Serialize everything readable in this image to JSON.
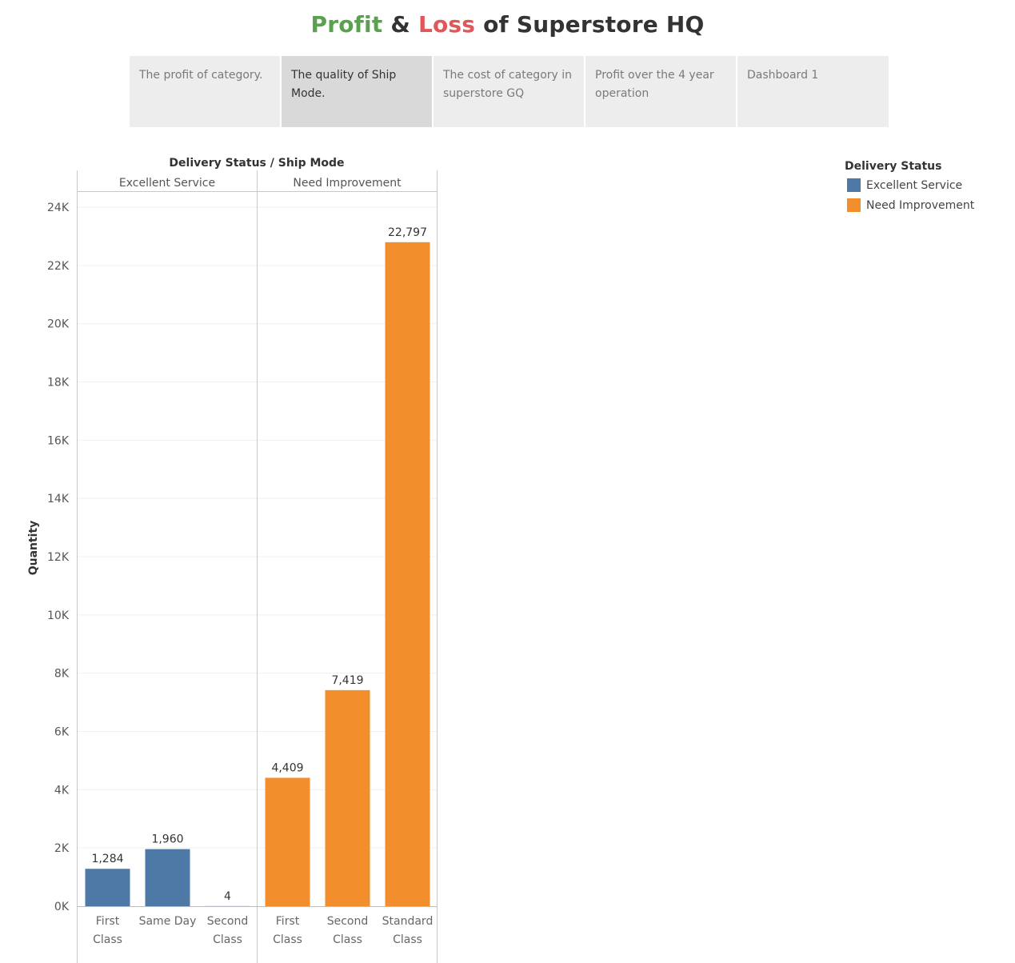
{
  "title": {
    "profit": "Profit",
    "amp": "&",
    "loss": "Loss",
    "rest": "of Superstore HQ",
    "profit_color": "#59a14f",
    "loss_color": "#e15759"
  },
  "tabs": [
    {
      "label": "The profit of category.",
      "active": false
    },
    {
      "label": "The quality of Ship Mode.",
      "active": true
    },
    {
      "label": "The cost of category in superstore GQ",
      "active": false
    },
    {
      "label": "Profit over the 4 year operation",
      "active": false
    },
    {
      "label": "Dashboard 1",
      "active": false
    }
  ],
  "legend": {
    "title": "Delivery Status",
    "items": [
      {
        "label": "Excellent Service",
        "color": "#4e79a7"
      },
      {
        "label": "Need Improvement",
        "color": "#f28e2b"
      }
    ]
  },
  "chart_data": {
    "type": "bar",
    "title": "",
    "header": "Delivery Status  /  Ship Mode",
    "ylabel": "Quantity",
    "ylim": [
      0,
      24000
    ],
    "yticks": [
      0,
      2000,
      4000,
      6000,
      8000,
      10000,
      12000,
      14000,
      16000,
      18000,
      20000,
      22000,
      24000
    ],
    "ytick_labels": [
      "0K",
      "2K",
      "4K",
      "6K",
      "8K",
      "10K",
      "12K",
      "14K",
      "16K",
      "18K",
      "20K",
      "22K",
      "24K"
    ],
    "grid": true,
    "legend_position": "top-right",
    "panels": [
      {
        "name": "Excellent Service",
        "color": "#4e79a7",
        "categories": [
          "First Class",
          "Same Day",
          "Second Class"
        ],
        "category_lines": [
          [
            "First",
            "Class"
          ],
          [
            "Same Day"
          ],
          [
            "Second",
            "Class"
          ]
        ],
        "values": [
          1284,
          1960,
          4
        ],
        "value_labels": [
          "1,284",
          "1,960",
          "4"
        ]
      },
      {
        "name": "Need Improvement",
        "color": "#f28e2b",
        "categories": [
          "First Class",
          "Second Class",
          "Standard Class"
        ],
        "category_lines": [
          [
            "First",
            "Class"
          ],
          [
            "Second",
            "Class"
          ],
          [
            "Standard",
            "Class"
          ]
        ],
        "values": [
          4409,
          7419,
          22797
        ],
        "value_labels": [
          "4,409",
          "7,419",
          "22,797"
        ]
      }
    ]
  }
}
